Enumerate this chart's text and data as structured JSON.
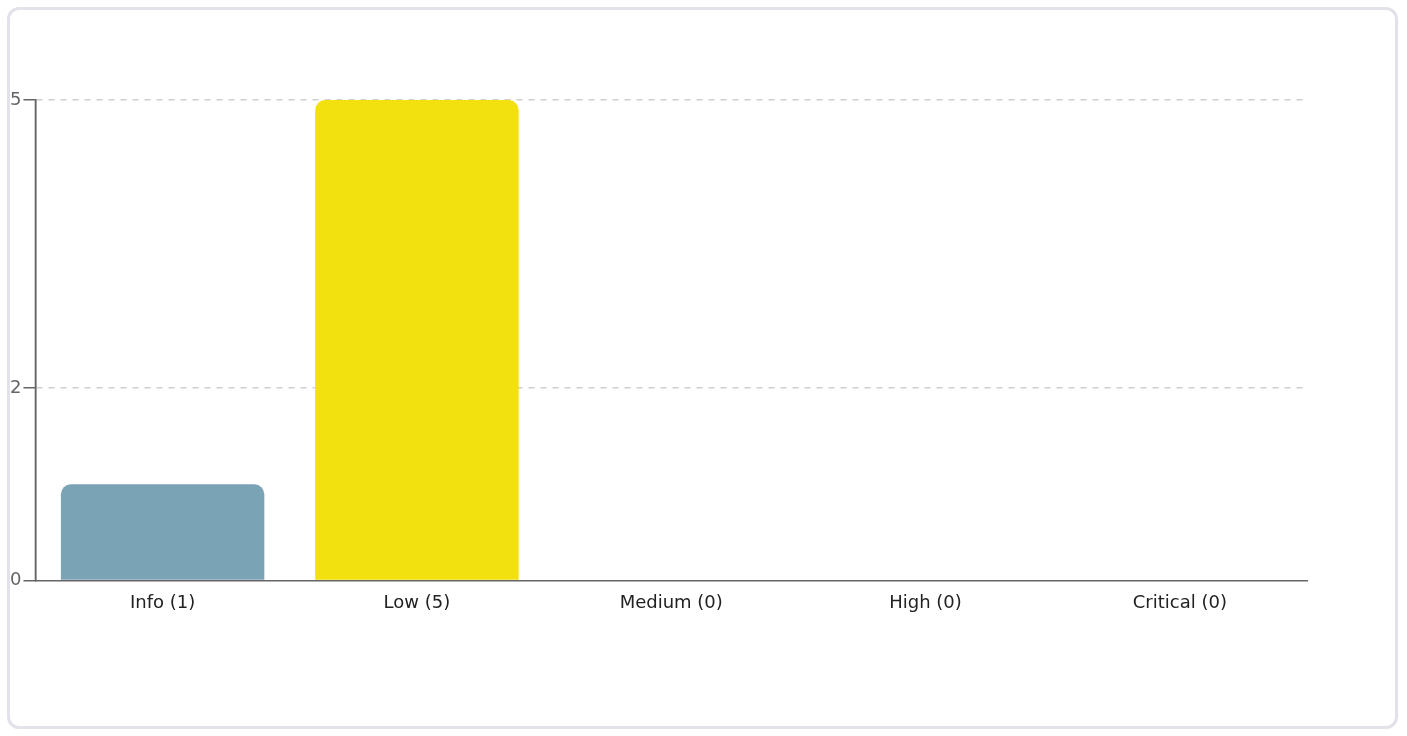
{
  "chart_data": {
    "type": "bar",
    "categories": [
      "Info (1)",
      "Low (5)",
      "Medium (0)",
      "High (0)",
      "Critical (0)"
    ],
    "values": [
      1,
      5,
      0,
      0,
      0
    ],
    "colors": [
      "#7ba3b6",
      "#f2e00f",
      null,
      null,
      null
    ],
    "ylim": [
      0,
      5
    ],
    "yticks": [
      0,
      2,
      5
    ],
    "grid": "y",
    "legend": false
  }
}
